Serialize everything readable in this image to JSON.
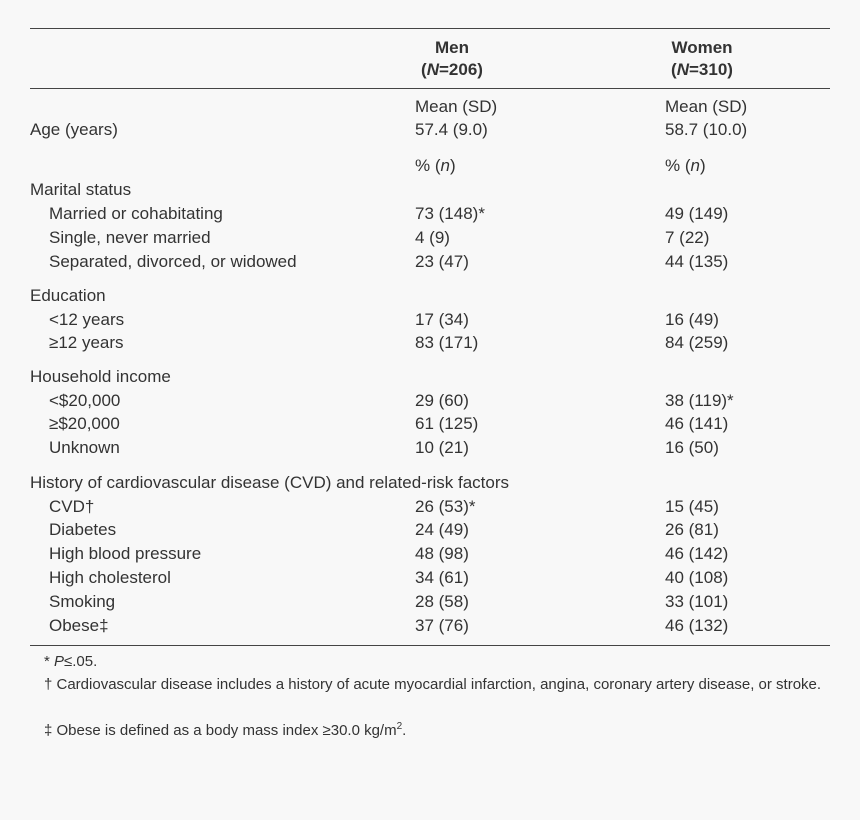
{
  "table": {
    "columns": [
      {
        "name": "Men",
        "n": [
          "(",
          "N",
          "=206)"
        ]
      },
      {
        "name": "Women",
        "n": [
          "(",
          "N",
          "=310)"
        ]
      }
    ],
    "rows": [
      {
        "men": "Mean (SD)",
        "women": "Mean (SD)"
      },
      {
        "label": "Age (years)",
        "men": "57.4 (9.0)",
        "women": "58.7 (10.0)"
      },
      {
        "men": [
          "% (",
          "n",
          ")"
        ],
        "women": [
          "% (",
          "n",
          ")"
        ]
      },
      {
        "label": "Marital status"
      },
      {
        "label": "Married or cohabitating",
        "men": "73 (148)*",
        "women": "49 (149)"
      },
      {
        "label": "Single, never married",
        "men": "4 (9)",
        "women": "7 (22)"
      },
      {
        "label": "Separated, divorced, or widowed",
        "men": "23 (47)",
        "women": "44 (135)"
      },
      {
        "label": "Education"
      },
      {
        "label": "<12 years",
        "men": "17 (34)",
        "women": "16 (49)"
      },
      {
        "label": "≥12 years",
        "men": "83 (171)",
        "women": "84 (259)"
      },
      {
        "label": "Household income"
      },
      {
        "label": "<$20,000",
        "men": "29 (60)",
        "women": "38 (119)*"
      },
      {
        "label": "≥$20,000",
        "men": "61 (125)",
        "women": "46 (141)"
      },
      {
        "label": "Unknown",
        "men": "10 (21)",
        "women": "16 (50)"
      },
      {
        "label": "History of cardiovascular disease (CVD) and related-risk factors"
      },
      {
        "label": "CVD†",
        "men": "26 (53)*",
        "women": "15 (45)"
      },
      {
        "label": "Diabetes",
        "men": "24 (49)",
        "women": "26 (81)"
      },
      {
        "label": "High blood pressure",
        "men": "48 (98)",
        "women": "46 (142)"
      },
      {
        "label": "High cholesterol",
        "men": "34 (61)",
        "women": "40 (108)"
      },
      {
        "label": "Smoking",
        "men": "28 (58)",
        "women": "33 (101)"
      },
      {
        "label": "Obese‡",
        "men": "37 (76)",
        "women": "46 (132)"
      }
    ],
    "footnotes": [
      [
        "* ",
        "P",
        "≤.05."
      ],
      [
        "† Cardiovascular disease includes a history of acute myocardial infarction, angina, coronary artery disease, or stroke."
      ],
      [
        "‡ Obese is defined as a body mass index ≥30.0 kg/m",
        "2",
        "."
      ]
    ]
  }
}
